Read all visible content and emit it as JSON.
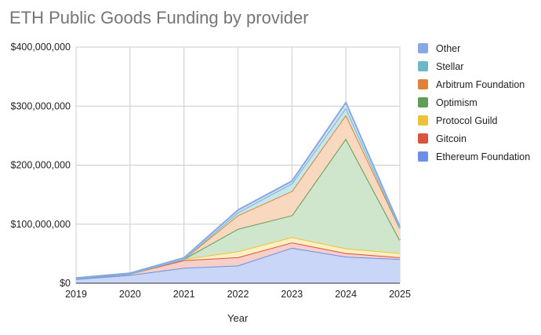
{
  "chart_data": {
    "type": "area",
    "stacked": true,
    "title": "ETH Public Goods Funding by provider",
    "xlabel": "Year",
    "ylabel": "",
    "x": [
      "2019",
      "2020",
      "2021",
      "2022",
      "2023",
      "2024",
      "2025"
    ],
    "ylim": [
      0,
      400000000
    ],
    "yticks": [
      0,
      100000000,
      200000000,
      300000000,
      400000000
    ],
    "ytick_labels": [
      "$0",
      "$100,000,000",
      "$200,000,000",
      "$300,000,000",
      "$400,000,000"
    ],
    "grid": true,
    "legend_position": "right",
    "series": [
      {
        "name": "Ethereum Foundation",
        "color": "#6d8fe8",
        "fill": "#c9d6f8",
        "values": [
          7000000,
          14000000,
          26000000,
          30000000,
          60000000,
          45000000,
          41000000
        ]
      },
      {
        "name": "Gitcoin",
        "color": "#d9533f",
        "fill": "#f6cfc9",
        "values": [
          1000000,
          2000000,
          13000000,
          14000000,
          9000000,
          6000000,
          3000000
        ]
      },
      {
        "name": "Protocol Guild",
        "color": "#edc23a",
        "fill": "#fbefc4",
        "values": [
          0,
          0,
          2000000,
          10000000,
          9000000,
          8000000,
          7000000
        ]
      },
      {
        "name": "Optimism",
        "color": "#5e9e55",
        "fill": "#d0e6cc",
        "values": [
          0,
          0,
          0,
          38000000,
          37000000,
          186000000,
          22000000
        ]
      },
      {
        "name": "Arbitrum Foundation",
        "color": "#e0823a",
        "fill": "#f8d9bf",
        "values": [
          0,
          0,
          0,
          23000000,
          41000000,
          40000000,
          20000000
        ]
      },
      {
        "name": "Stellar",
        "color": "#6cb8c4",
        "fill": "#c7e6ea",
        "values": [
          0,
          0,
          0,
          5000000,
          13000000,
          12000000,
          0
        ]
      },
      {
        "name": "Other",
        "color": "#87a8e4",
        "fill": "#d7e2f6",
        "values": [
          1000000,
          1000000,
          2000000,
          4000000,
          4000000,
          9000000,
          3000000
        ]
      }
    ],
    "legend_order": [
      "Other",
      "Stellar",
      "Arbitrum Foundation",
      "Optimism",
      "Protocol Guild",
      "Gitcoin",
      "Ethereum Foundation"
    ]
  }
}
